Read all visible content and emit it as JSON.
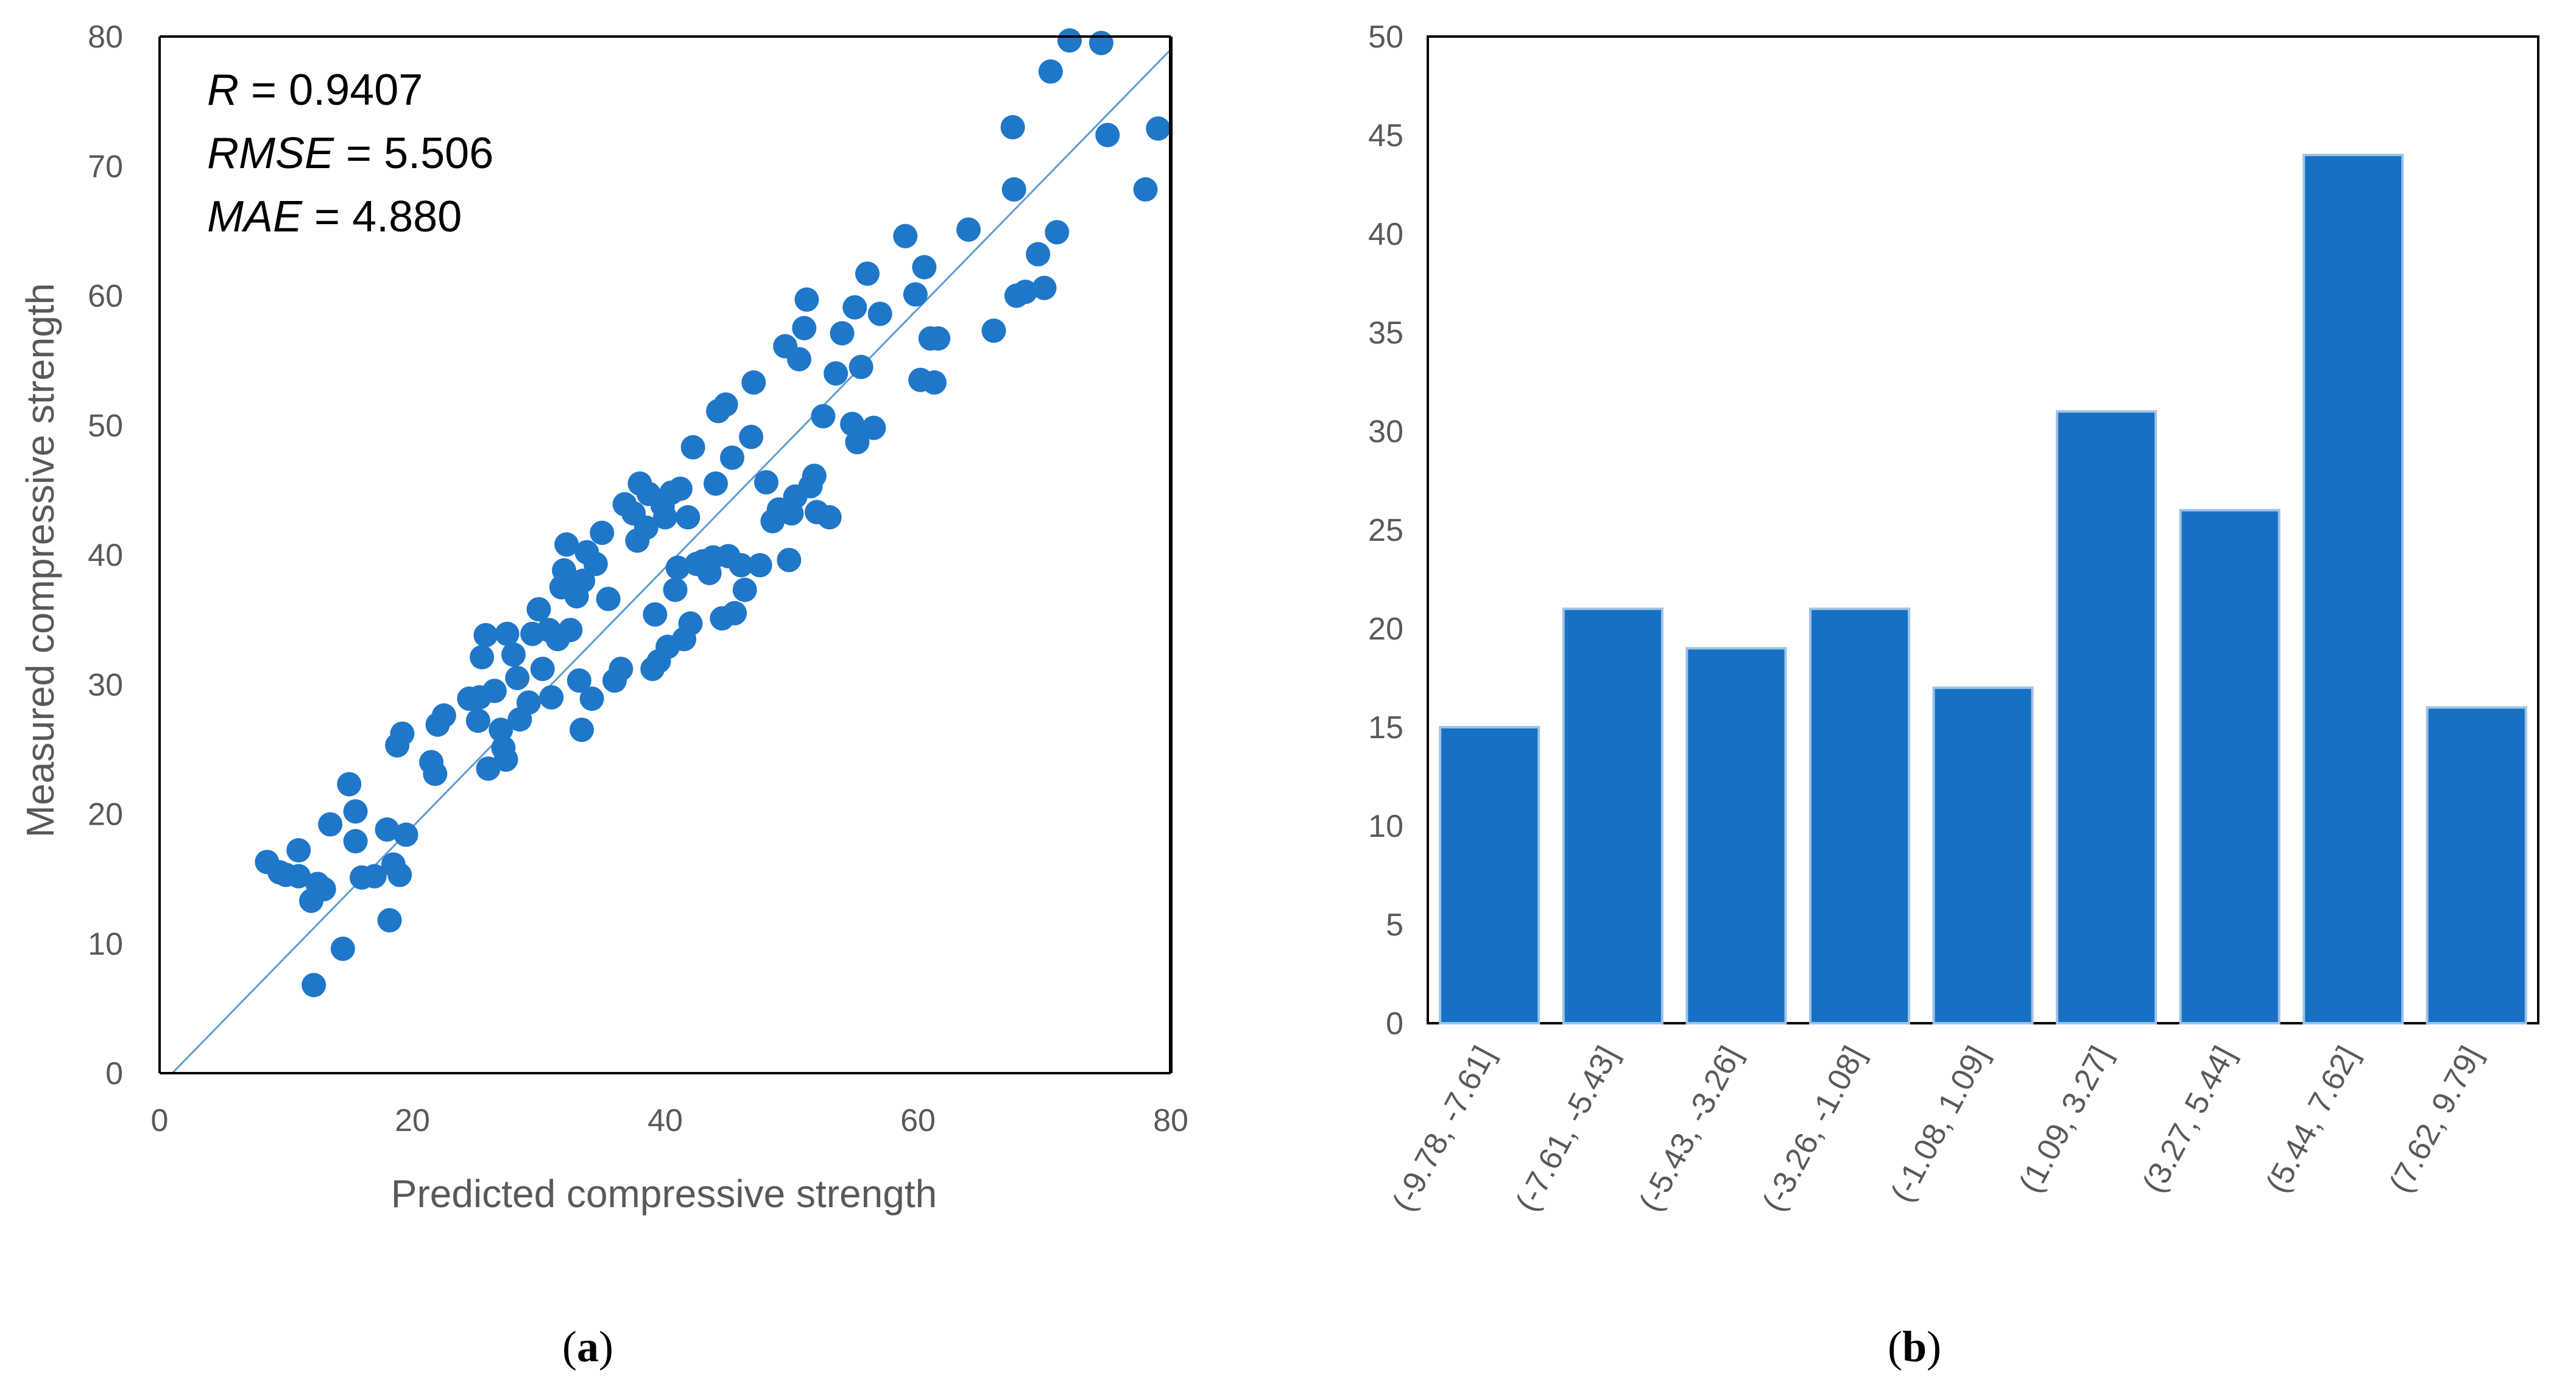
{
  "colors": {
    "marker": "#1f77c9",
    "bar_fill": "#1670c4",
    "bar_edge": "#9ec3e6",
    "fit_line": "#5b9bd5",
    "axis": "#000000",
    "tick_text": "#595959"
  },
  "panels": {
    "a": {
      "label_open": "(",
      "label_letter": "a",
      "label_close": ")"
    },
    "b": {
      "label_open": "(",
      "label_letter": "b",
      "label_close": ")"
    }
  },
  "chart_data": [
    {
      "type": "scatter",
      "title": "",
      "xlabel": "Predicted compressive strength",
      "ylabel": "Measured compressive strength",
      "xlim": [
        0,
        80
      ],
      "ylim": [
        0,
        80
      ],
      "xticks": [
        0,
        20,
        40,
        60,
        80
      ],
      "yticks": [
        0,
        10,
        20,
        30,
        40,
        50,
        60,
        70,
        80
      ],
      "reference_line": {
        "x": [
          1,
          80
        ],
        "y": [
          0,
          79
        ]
      },
      "stats": [
        {
          "name": "R",
          "sep": " = ",
          "value": "0.9407"
        },
        {
          "name": "RMSE",
          "sep": " = ",
          "value": "5.506"
        },
        {
          "name": "MAE",
          "sep": " = ",
          "value": "4.880"
        }
      ],
      "points": [
        [
          8.5,
          16.3
        ],
        [
          9.5,
          15.5
        ],
        [
          10,
          15.3
        ],
        [
          11,
          17.2
        ],
        [
          11,
          15.2
        ],
        [
          12,
          13.3
        ],
        [
          12.5,
          14.6
        ],
        [
          13,
          14.2
        ],
        [
          12.2,
          6.8
        ],
        [
          14.5,
          9.6
        ],
        [
          13.5,
          19.2
        ],
        [
          15,
          22.3
        ],
        [
          15.5,
          20.2
        ],
        [
          15.5,
          17.9
        ],
        [
          16,
          15.1
        ],
        [
          17,
          15.2
        ],
        [
          18,
          18.8
        ],
        [
          18.5,
          16.1
        ],
        [
          18.2,
          11.8
        ],
        [
          19,
          15.3
        ],
        [
          19.5,
          18.4
        ],
        [
          18.8,
          25.3
        ],
        [
          19.2,
          26.2
        ],
        [
          21.5,
          24.0
        ],
        [
          21.8,
          23.1
        ],
        [
          22,
          26.9
        ],
        [
          22.5,
          27.6
        ],
        [
          24.5,
          28.9
        ],
        [
          25.2,
          27.2
        ],
        [
          25.3,
          29.0
        ],
        [
          25.5,
          32.1
        ],
        [
          25.8,
          33.8
        ],
        [
          26,
          23.5
        ],
        [
          26.5,
          29.5
        ],
        [
          27,
          26.5
        ],
        [
          27.2,
          25.1
        ],
        [
          27.4,
          24.2
        ],
        [
          27.5,
          33.9
        ],
        [
          28,
          32.3
        ],
        [
          28.3,
          30.5
        ],
        [
          28.5,
          27.3
        ],
        [
          29.2,
          28.6
        ],
        [
          29.5,
          33.9
        ],
        [
          30,
          35.8
        ],
        [
          30.3,
          31.2
        ],
        [
          30.8,
          34.2
        ],
        [
          31,
          29.0
        ],
        [
          31.5,
          33.5
        ],
        [
          31.8,
          37.5
        ],
        [
          32,
          38.8
        ],
        [
          32.2,
          40.8
        ],
        [
          32.5,
          34.2
        ],
        [
          33,
          36.8
        ],
        [
          33.2,
          30.3
        ],
        [
          33.4,
          26.5
        ],
        [
          33.5,
          38.0
        ],
        [
          33.8,
          40.2
        ],
        [
          34.2,
          28.9
        ],
        [
          34.5,
          39.3
        ],
        [
          35,
          41.7
        ],
        [
          35.5,
          36.6
        ],
        [
          36,
          30.3
        ],
        [
          36.5,
          31.2
        ],
        [
          36.8,
          43.9
        ],
        [
          37.5,
          43.2
        ],
        [
          37.8,
          41.1
        ],
        [
          38,
          45.5
        ],
        [
          38.5,
          42.1
        ],
        [
          38.7,
          44.7
        ],
        [
          39,
          31.2
        ],
        [
          39.2,
          35.4
        ],
        [
          39.5,
          31.8
        ],
        [
          39.8,
          43.8
        ],
        [
          40,
          42.9
        ],
        [
          40.2,
          32.9
        ],
        [
          40.5,
          44.8
        ],
        [
          40.8,
          37.3
        ],
        [
          41,
          39.0
        ],
        [
          41.2,
          45.1
        ],
        [
          41.5,
          33.5
        ],
        [
          41.8,
          42.9
        ],
        [
          42,
          34.7
        ],
        [
          42.2,
          48.3
        ],
        [
          42.5,
          39.3
        ],
        [
          43,
          39.5
        ],
        [
          43.5,
          38.6
        ],
        [
          43.8,
          39.8
        ],
        [
          44,
          45.5
        ],
        [
          44.2,
          51.1
        ],
        [
          44.5,
          35.1
        ],
        [
          44.8,
          51.6
        ],
        [
          45,
          39.9
        ],
        [
          45.3,
          47.5
        ],
        [
          45.5,
          35.5
        ],
        [
          46,
          39.2
        ],
        [
          46.3,
          37.3
        ],
        [
          46.8,
          49.1
        ],
        [
          47,
          53.3
        ],
        [
          47.5,
          39.2
        ],
        [
          48,
          45.6
        ],
        [
          48.5,
          42.6
        ],
        [
          49,
          43.5
        ],
        [
          49.5,
          56.1
        ],
        [
          49.8,
          39.6
        ],
        [
          50,
          43.2
        ],
        [
          50.3,
          44.5
        ],
        [
          50.6,
          55.1
        ],
        [
          51,
          57.5
        ],
        [
          51.2,
          59.7
        ],
        [
          51.5,
          45.3
        ],
        [
          51.8,
          46.1
        ],
        [
          52,
          43.3
        ],
        [
          52.5,
          50.7
        ],
        [
          53,
          42.9
        ],
        [
          53.5,
          54.0
        ],
        [
          54,
          57.1
        ],
        [
          54.8,
          50.1
        ],
        [
          55,
          59.1
        ],
        [
          55.2,
          48.7
        ],
        [
          55.5,
          54.5
        ],
        [
          56,
          61.7
        ],
        [
          56.5,
          49.8
        ],
        [
          57,
          58.6
        ],
        [
          59,
          64.6
        ],
        [
          59.8,
          60.1
        ],
        [
          60.2,
          53.5
        ],
        [
          60.5,
          62.2
        ],
        [
          61,
          56.7
        ],
        [
          61.3,
          53.3
        ],
        [
          61.6,
          56.7
        ],
        [
          64,
          65.1
        ],
        [
          66,
          57.3
        ],
        [
          67.5,
          73.0
        ],
        [
          67.6,
          68.2
        ],
        [
          67.8,
          60.0
        ],
        [
          68.5,
          60.3
        ],
        [
          69.5,
          63.2
        ],
        [
          70,
          60.6
        ],
        [
          70.5,
          77.3
        ],
        [
          71,
          64.9
        ],
        [
          72,
          79.7
        ],
        [
          74.5,
          79.5
        ],
        [
          75,
          72.4
        ],
        [
          78,
          68.2
        ],
        [
          79,
          72.9
        ]
      ]
    },
    {
      "type": "bar",
      "title": "",
      "xlabel": "",
      "ylabel": "",
      "ylim": [
        0,
        50
      ],
      "yticks": [
        0,
        5,
        10,
        15,
        20,
        25,
        30,
        35,
        40,
        45,
        50
      ],
      "categories": [
        "(-9.78, -7.61]",
        "(-7.61, -5.43]",
        "(-5.43, -3.26]",
        "(-3.26, -1.08]",
        "(-1.08, 1.09]",
        "(1.09, 3.27]",
        "(3.27, 5.44]",
        "(5.44, 7.62]",
        "(7.62, 9.79]"
      ],
      "values": [
        15,
        21,
        19,
        21,
        17,
        31,
        26,
        44,
        16
      ]
    }
  ]
}
